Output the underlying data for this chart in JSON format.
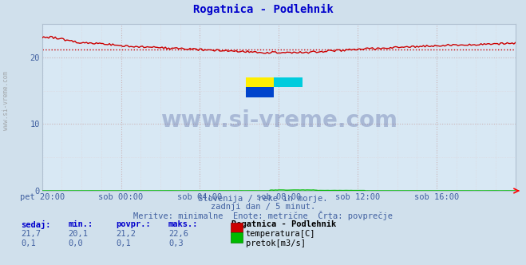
{
  "title": "Rogatnica - Podlehnik",
  "bg_color": "#d0e0ec",
  "plot_bg_color": "#d8e8f4",
  "grid_color_major": "#c8a8a8",
  "grid_color_minor": "#e0c8c8",
  "tick_color": "#4060a0",
  "ylabel_ticks": [
    0,
    10,
    20
  ],
  "ylim": [
    0,
    25
  ],
  "xlim": [
    0,
    288
  ],
  "xtick_labels": [
    "pet 20:00",
    "sob 00:00",
    "sob 04:00",
    "sob 08:00",
    "sob 12:00",
    "sob 16:00"
  ],
  "xtick_positions": [
    0,
    48,
    96,
    144,
    192,
    240
  ],
  "temp_color": "#cc0000",
  "flow_color": "#00bb00",
  "avg_temp": 21.2,
  "avg_flow": 0.1,
  "watermark": "www.si-vreme.com",
  "subtitle1": "Slovenija / reke in morje.",
  "subtitle2": "zadnji dan / 5 minut.",
  "subtitle3": "Meritve: minimalne  Enote: metrične  Črta: povprečje",
  "legend_title": "Rogatnica - Podlehnik",
  "legend_temp": "temperatura[C]",
  "legend_flow": "pretok[m3/s]",
  "table_headers": [
    "sedaj:",
    "min.:",
    "povpr.:",
    "maks.:"
  ],
  "table_temp": [
    "21,7",
    "20,1",
    "21,2",
    "22,6"
  ],
  "table_flow": [
    "0,1",
    "0,0",
    "0,1",
    "0,3"
  ],
  "title_color": "#0000cc",
  "subtitle_color": "#4060a0",
  "header_color": "#0000cc",
  "value_color": "#4060a0",
  "legend_title_color": "#000000",
  "legend_label_color": "#000000"
}
